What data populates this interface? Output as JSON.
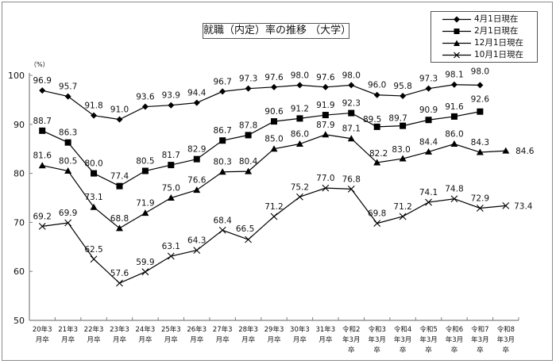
{
  "chart_data": {
    "type": "line",
    "title": "就職（内定）率の推移 （大学）",
    "ylabel": "（%）",
    "xlabel": "",
    "ylim": [
      50,
      100
    ],
    "yticks": [
      50,
      60,
      70,
      80,
      90,
      100
    ],
    "grid": false,
    "legend_position": "top-right",
    "categories": [
      "20年3月卒",
      "21年3月卒",
      "22年3月卒",
      "23年3月卒",
      "24年3月卒",
      "25年3月卒",
      "26年3月卒",
      "27年3月卒",
      "28年3月卒",
      "29年3月卒",
      "30年3月卒",
      "31年3月卒",
      "令和2年3月卒",
      "令和3年3月卒",
      "令和4年3月卒",
      "令和5年3月卒",
      "令和6年3月卒",
      "令和7年3月卒",
      "令和8年3月卒"
    ],
    "category_lines": [
      [
        "20年3",
        "月卒"
      ],
      [
        "21年3",
        "月卒"
      ],
      [
        "22年3",
        "月卒"
      ],
      [
        "23年3",
        "月卒"
      ],
      [
        "24年3",
        "月卒"
      ],
      [
        "25年3",
        "月卒"
      ],
      [
        "26年3",
        "月卒"
      ],
      [
        "27年3",
        "月卒"
      ],
      [
        "28年3",
        "月卒"
      ],
      [
        "29年3",
        "月卒"
      ],
      [
        "30年3",
        "月卒"
      ],
      [
        "31年3",
        "月卒"
      ],
      [
        "令和2",
        "年3月",
        "卒"
      ],
      [
        "令和3",
        "年3月",
        "卒"
      ],
      [
        "令和4",
        "年3月",
        "卒"
      ],
      [
        "令和5",
        "年3月",
        "卒"
      ],
      [
        "令和6",
        "年3月",
        "卒"
      ],
      [
        "令和7",
        "年3月",
        "卒"
      ],
      [
        "令和8",
        "年3月",
        "卒"
      ]
    ],
    "series": [
      {
        "name": "4月1日現在",
        "marker": "diamond",
        "values": [
          96.9,
          95.7,
          91.8,
          91.0,
          93.6,
          93.9,
          94.4,
          96.7,
          97.3,
          97.6,
          98.0,
          97.6,
          98.0,
          96.0,
          95.8,
          97.3,
          98.1,
          98.0,
          null
        ]
      },
      {
        "name": "2月1日現在",
        "marker": "square",
        "values": [
          88.7,
          86.3,
          80.0,
          77.4,
          80.5,
          81.7,
          82.9,
          86.7,
          87.8,
          90.6,
          91.2,
          91.9,
          92.3,
          89.5,
          89.7,
          90.9,
          91.6,
          92.6,
          null
        ]
      },
      {
        "name": "12月1日現在",
        "marker": "triangle",
        "values": [
          81.6,
          80.5,
          73.1,
          68.8,
          71.9,
          75.0,
          76.6,
          80.3,
          80.4,
          85.0,
          86.0,
          87.9,
          87.1,
          82.2,
          83.0,
          84.4,
          86.0,
          84.3,
          84.6
        ]
      },
      {
        "name": "10月1日現在",
        "marker": "x",
        "values": [
          69.2,
          69.9,
          62.5,
          57.6,
          59.9,
          63.1,
          64.3,
          68.4,
          66.5,
          71.2,
          75.2,
          77.0,
          76.8,
          69.8,
          71.2,
          74.1,
          74.8,
          72.9,
          73.4
        ]
      }
    ]
  },
  "title": "就職（内定）率の推移 （大学）",
  "y_unit": "（%）",
  "legend": [
    {
      "label": "4月1日現在",
      "marker": "diamond"
    },
    {
      "label": "2月1日現在",
      "marker": "square"
    },
    {
      "label": "12月1日現在",
      "marker": "triangle"
    },
    {
      "label": "10月1日現在",
      "marker": "x"
    }
  ],
  "colors": {
    "line": "#000000",
    "axis": "#808080",
    "text": "#111111"
  }
}
